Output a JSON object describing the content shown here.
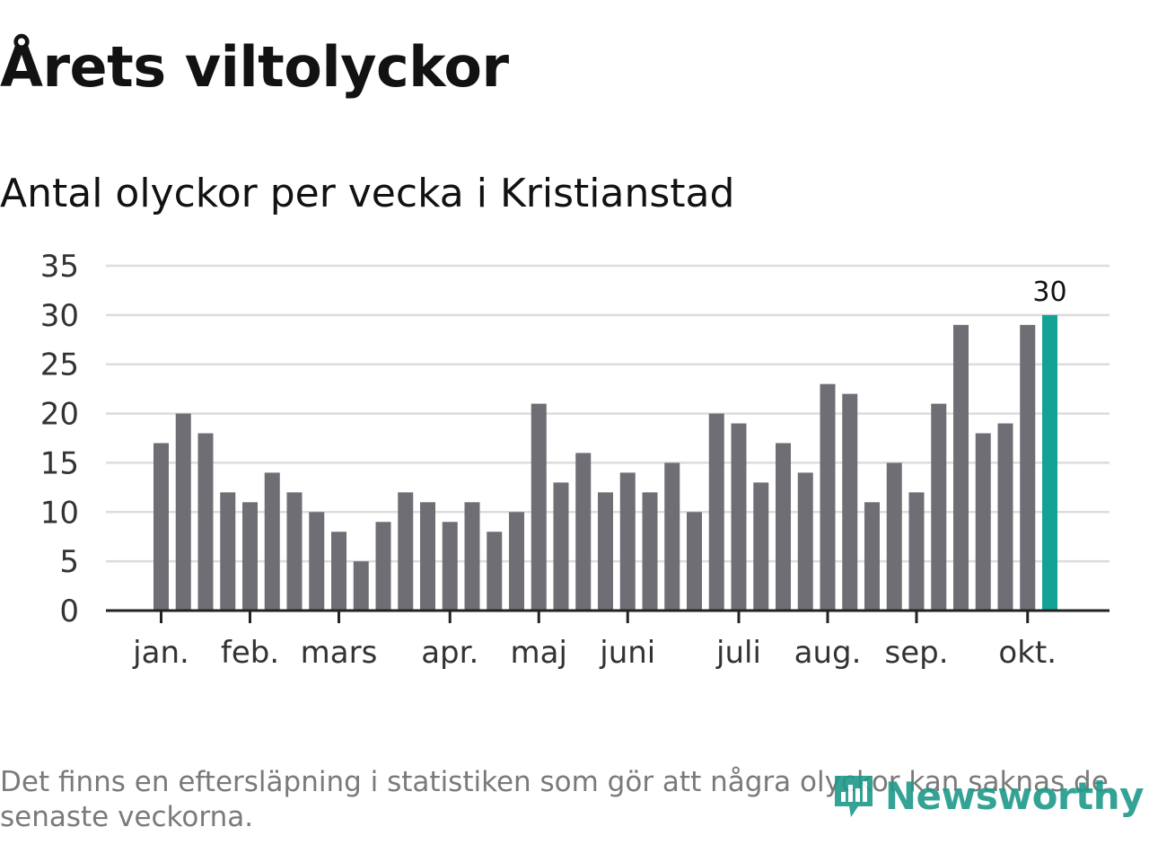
{
  "title": "Årets viltolyckor",
  "subtitle": "Antal olyckor per vecka i Kristianstad",
  "footnote": "Det finns en eftersläpning i statistiken som gör att några olyckor kan saknas de senaste veckorna.",
  "brand": {
    "name": "Newsworthy",
    "icon": "chart-bubble-icon"
  },
  "colors": {
    "bar": "#6f6e75",
    "highlight": "#12a394",
    "grid": "#dcdcdc",
    "axis": "#222222",
    "brand": "#1f9a8a"
  },
  "chart_data": {
    "type": "bar",
    "title": "Antal olyckor per vecka i Kristianstad",
    "xlabel": "",
    "ylabel": "",
    "ylim": [
      0,
      35
    ],
    "yticks": [
      0,
      5,
      10,
      15,
      20,
      25,
      30,
      35
    ],
    "values": [
      17,
      20,
      18,
      12,
      11,
      14,
      12,
      10,
      8,
      5,
      9,
      12,
      11,
      9,
      11,
      8,
      10,
      21,
      13,
      16,
      12,
      14,
      12,
      15,
      10,
      20,
      19,
      13,
      17,
      14,
      23,
      22,
      11,
      15,
      12,
      21,
      29,
      18,
      19,
      29,
      30
    ],
    "highlight_index": 40,
    "highlight_label": "30",
    "month_ticks": [
      {
        "label": "jan.",
        "index": 0
      },
      {
        "label": "feb.",
        "index": 4
      },
      {
        "label": "mars",
        "index": 8
      },
      {
        "label": "apr.",
        "index": 13
      },
      {
        "label": "maj",
        "index": 17
      },
      {
        "label": "juni",
        "index": 21
      },
      {
        "label": "juli",
        "index": 26
      },
      {
        "label": "aug.",
        "index": 30
      },
      {
        "label": "sep.",
        "index": 34
      },
      {
        "label": "okt.",
        "index": 39
      }
    ],
    "grid": true
  }
}
